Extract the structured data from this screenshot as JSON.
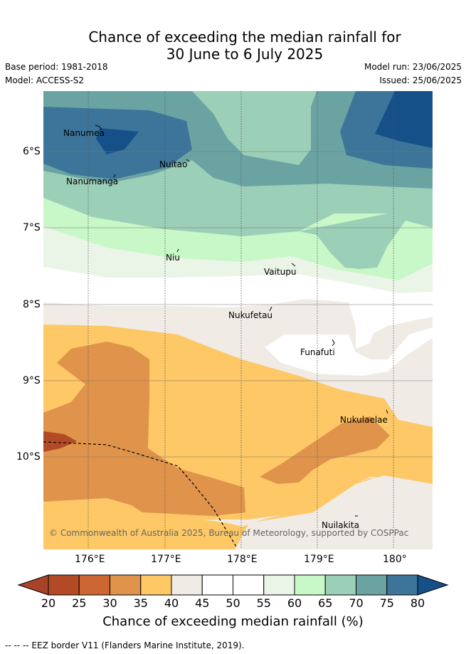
{
  "header": {
    "title_line1": "Chance of exceeding the median rainfall for",
    "title_line2": "30 June to 6 July 2025",
    "base_period": "Base period: 1981-2018",
    "model": "Model: ACCESS-S2",
    "model_run": "Model run: 23/06/2025",
    "issued": "Issued: 25/06/2025"
  },
  "map": {
    "latitude_labels": [
      "6°S",
      "7°S",
      "8°S",
      "9°S",
      "10°S"
    ],
    "longitude_labels": [
      "176°E",
      "177°E",
      "178°E",
      "179°E",
      "180°"
    ],
    "places": [
      "Nanumea",
      "Nuitao",
      "Nanumanga",
      "Niu",
      "Vaitupu",
      "Nukufetau",
      "Funafuti",
      "Nukulaelae",
      "Nuilakita"
    ],
    "copyright": "© Commonwealth of Australia 2025, Bureau of Meteorology, supported by COSPPac"
  },
  "colorbar": {
    "ticks": [
      "20",
      "25",
      "30",
      "35",
      "40",
      "45",
      "50",
      "55",
      "60",
      "65",
      "70",
      "75",
      "80"
    ],
    "colors": [
      "#b34a26",
      "#cc6633",
      "#e0934a",
      "#fdc865",
      "#f0ebe5",
      "#ffffff",
      "#ffffff",
      "#eaf5e8",
      "#c8f7c8",
      "#9ccfb7",
      "#6ba3a3",
      "#3c7599"
    ],
    "under_color": "#a8432a",
    "over_color": "#165089",
    "title": "Chance of exceeding median rainfall (%)"
  },
  "footer": {
    "legend": "-- -- -- EEZ border V11 (Flanders Marine Institute, 2019)."
  }
}
